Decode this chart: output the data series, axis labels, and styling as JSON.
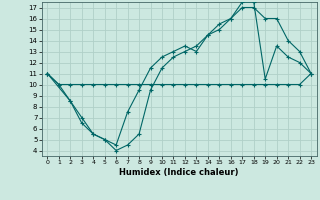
{
  "xlabel": "Humidex (Indice chaleur)",
  "background_color": "#cce8e0",
  "grid_color": "#b0d0c8",
  "line_color": "#006666",
  "line1_x": [
    0,
    1,
    2,
    3,
    4,
    5,
    6,
    7,
    8,
    9,
    10,
    11,
    12,
    13,
    14,
    15,
    16,
    17,
    18,
    19,
    20,
    21,
    22,
    23
  ],
  "line1_y": [
    11,
    10,
    10,
    10,
    10,
    10,
    10,
    10,
    10,
    10,
    10,
    10,
    10,
    10,
    10,
    10,
    10,
    10,
    10,
    10,
    10,
    10,
    10,
    11
  ],
  "line2_x": [
    0,
    2,
    3,
    4,
    5,
    6,
    7,
    8,
    9,
    10,
    11,
    12,
    13,
    14,
    15,
    16,
    17,
    18,
    19,
    20,
    21,
    22,
    23
  ],
  "line2_y": [
    11,
    8.5,
    7.0,
    5.5,
    5.0,
    4.5,
    7.5,
    9.5,
    11.5,
    12.5,
    13.0,
    13.5,
    13.0,
    14.5,
    15.0,
    16.0,
    17.0,
    17.0,
    16.0,
    16.0,
    14.0,
    13.0,
    11.0
  ],
  "line3_x": [
    0,
    1,
    2,
    3,
    4,
    5,
    6,
    7,
    8,
    9,
    10,
    11,
    12,
    13,
    14,
    15,
    16,
    17,
    18,
    19,
    20,
    21,
    22,
    23
  ],
  "line3_y": [
    11,
    10,
    8.5,
    6.5,
    5.5,
    5.0,
    4.0,
    4.5,
    5.5,
    9.5,
    11.5,
    12.5,
    13.0,
    13.5,
    14.5,
    15.5,
    16.0,
    17.5,
    17.5,
    10.5,
    13.5,
    12.5,
    12.0,
    11.0
  ],
  "xlim_min": -0.5,
  "xlim_max": 23.5,
  "ylim_min": 3.5,
  "ylim_max": 17.5,
  "yticks": [
    4,
    5,
    6,
    7,
    8,
    9,
    10,
    11,
    12,
    13,
    14,
    15,
    16,
    17
  ],
  "xticks": [
    0,
    1,
    2,
    3,
    4,
    5,
    6,
    7,
    8,
    9,
    10,
    11,
    12,
    13,
    14,
    15,
    16,
    17,
    18,
    19,
    20,
    21,
    22,
    23
  ]
}
